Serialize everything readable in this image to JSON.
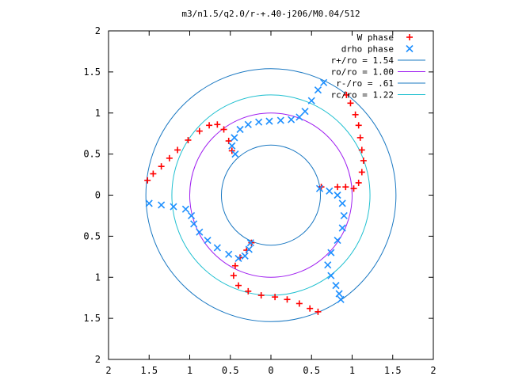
{
  "chart_data": {
    "type": "scatter",
    "title": "m3/n1.5/q2.0/r-+.40-j206/M0.04/512",
    "xlabel": "",
    "ylabel": "",
    "xlim": [
      -2,
      2
    ],
    "ylim": [
      -2,
      2
    ],
    "x_tick_values": [
      -2,
      -1.5,
      -1,
      -0.5,
      0,
      0.5,
      1,
      1.5,
      2
    ],
    "x_tick_labels": [
      "2",
      "1.5",
      "1",
      "0.5",
      "0",
      "0.5",
      "1",
      "1.5",
      "2"
    ],
    "y_tick_values": [
      2,
      1.5,
      1,
      0.5,
      0,
      -0.5,
      -1,
      -1.5,
      -2
    ],
    "y_tick_labels": [
      "2",
      "1.5",
      "1",
      "0.5",
      "0",
      "0.5",
      "1",
      "1.5",
      "2"
    ],
    "grid": false,
    "legend_position": "top-right",
    "series": [
      {
        "name": "W phase",
        "kind": "points",
        "marker": "plus",
        "color": "#ff0000",
        "points": [
          [
            -1.52,
            0.18
          ],
          [
            -1.45,
            0.26
          ],
          [
            -1.35,
            0.35
          ],
          [
            -1.25,
            0.45
          ],
          [
            -1.15,
            0.55
          ],
          [
            -1.02,
            0.67
          ],
          [
            -0.88,
            0.78
          ],
          [
            -0.76,
            0.85
          ],
          [
            -0.66,
            0.86
          ],
          [
            -0.58,
            0.8
          ],
          [
            -0.52,
            0.66
          ],
          [
            -0.48,
            0.54
          ],
          [
            0.93,
            1.22
          ],
          [
            0.98,
            1.12
          ],
          [
            1.04,
            0.98
          ],
          [
            1.08,
            0.85
          ],
          [
            1.1,
            0.7
          ],
          [
            1.12,
            0.55
          ],
          [
            1.14,
            0.42
          ],
          [
            1.12,
            0.28
          ],
          [
            1.08,
            0.15
          ],
          [
            1.02,
            0.08
          ],
          [
            0.92,
            0.1
          ],
          [
            0.82,
            0.1
          ],
          [
            0.62,
            0.1
          ],
          [
            0.58,
            -1.42
          ],
          [
            0.48,
            -1.38
          ],
          [
            0.35,
            -1.32
          ],
          [
            0.2,
            -1.27
          ],
          [
            0.05,
            -1.24
          ],
          [
            -0.12,
            -1.22
          ],
          [
            -0.28,
            -1.17
          ],
          [
            -0.4,
            -1.1
          ],
          [
            -0.46,
            -0.98
          ],
          [
            -0.44,
            -0.86
          ],
          [
            -0.38,
            -0.76
          ],
          [
            -0.3,
            -0.67
          ],
          [
            -0.24,
            -0.58
          ]
        ]
      },
      {
        "name": "drho phase",
        "kind": "points",
        "marker": "cross",
        "color": "#1e90ff",
        "points": [
          [
            0.65,
            1.37
          ],
          [
            0.58,
            1.28
          ],
          [
            0.5,
            1.15
          ],
          [
            0.42,
            1.02
          ],
          [
            0.35,
            0.95
          ],
          [
            0.25,
            0.92
          ],
          [
            0.12,
            0.91
          ],
          [
            -0.02,
            0.9
          ],
          [
            -0.15,
            0.89
          ],
          [
            -0.28,
            0.86
          ],
          [
            -0.38,
            0.8
          ],
          [
            -0.45,
            0.7
          ],
          [
            -0.48,
            0.6
          ],
          [
            -0.44,
            0.5
          ],
          [
            -1.5,
            -0.1
          ],
          [
            -1.35,
            -0.12
          ],
          [
            -1.2,
            -0.14
          ],
          [
            -1.05,
            -0.17
          ],
          [
            -0.98,
            -0.25
          ],
          [
            -0.95,
            -0.35
          ],
          [
            -0.88,
            -0.45
          ],
          [
            -0.78,
            -0.55
          ],
          [
            -0.66,
            -0.64
          ],
          [
            -0.52,
            -0.72
          ],
          [
            -0.4,
            -0.77
          ],
          [
            -0.32,
            -0.74
          ],
          [
            -0.27,
            -0.66
          ],
          [
            -0.25,
            -0.58
          ],
          [
            0.6,
            0.08
          ],
          [
            0.72,
            0.05
          ],
          [
            0.82,
            0.0
          ],
          [
            0.88,
            -0.1
          ],
          [
            0.9,
            -0.25
          ],
          [
            0.88,
            -0.4
          ],
          [
            0.82,
            -0.55
          ],
          [
            0.74,
            -0.7
          ],
          [
            0.7,
            -0.85
          ],
          [
            0.74,
            -0.98
          ],
          [
            0.8,
            -1.1
          ],
          [
            0.84,
            -1.2
          ],
          [
            0.86,
            -1.27
          ]
        ]
      },
      {
        "name": "r+/ro = 1.54",
        "kind": "circle",
        "radius": 1.54,
        "color": "#1a78c2"
      },
      {
        "name": "ro/ro = 1.00",
        "kind": "circle",
        "radius": 1.0,
        "color": "#a020f0"
      },
      {
        "name": "r-/ro = .61",
        "kind": "circle",
        "radius": 0.61,
        "color": "#1a78c2"
      },
      {
        "name": "rc/ro = 1.22",
        "kind": "circle",
        "radius": 1.22,
        "color": "#20c0d0"
      }
    ]
  }
}
